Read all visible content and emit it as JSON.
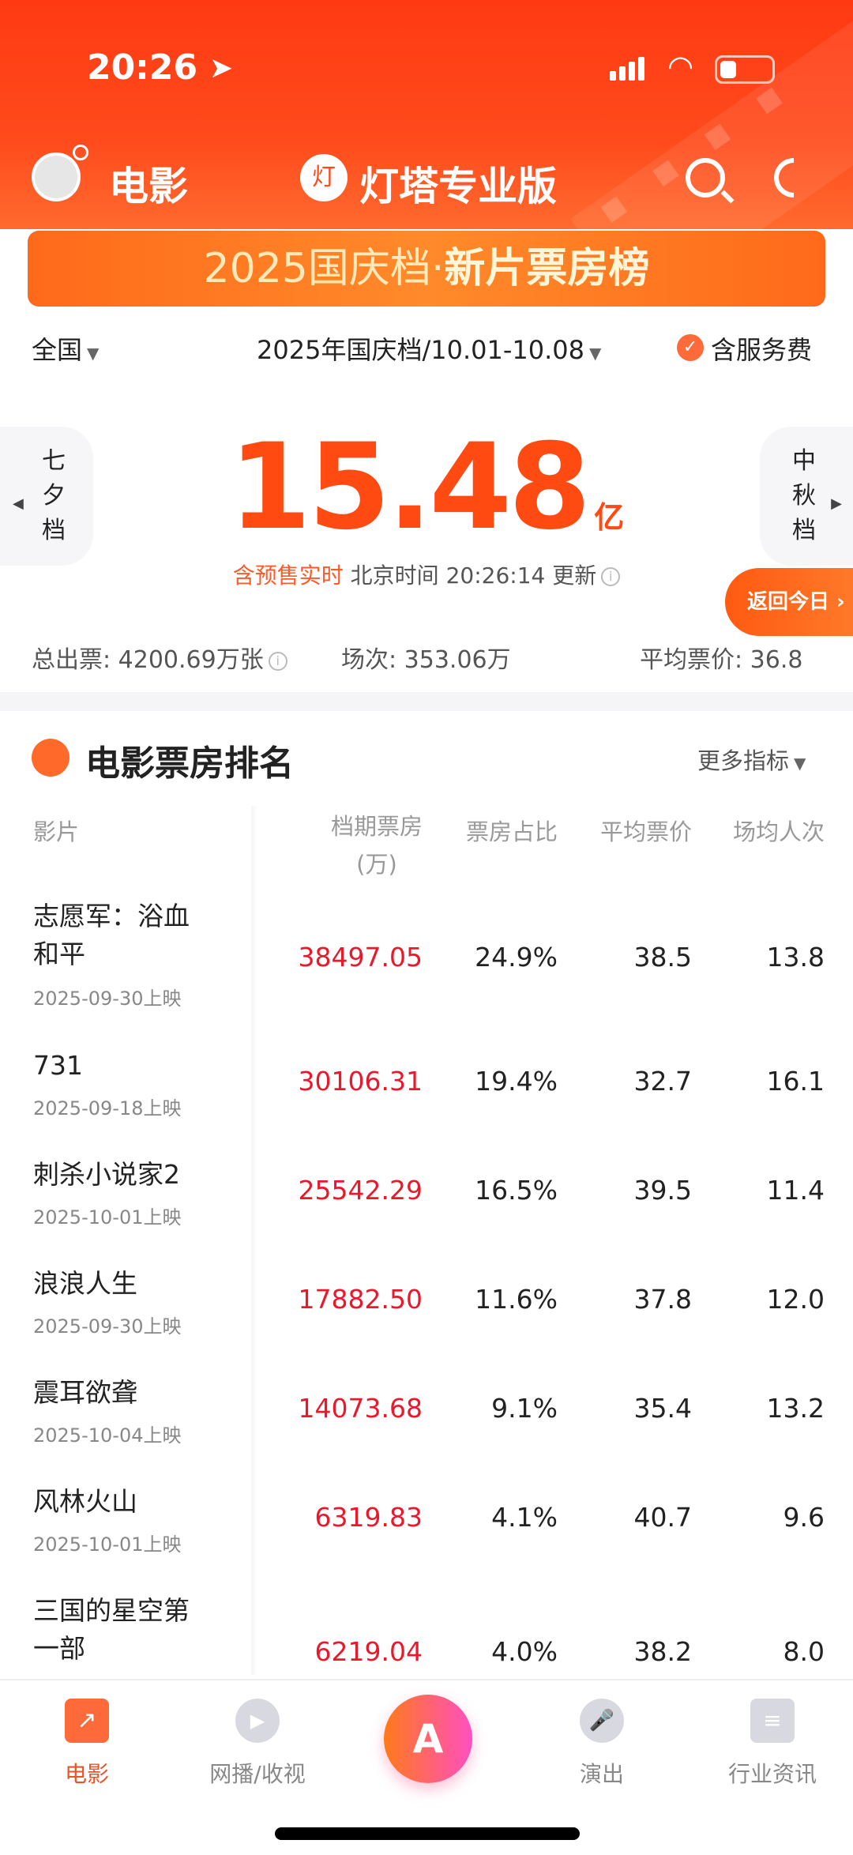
{
  "status_bar": {
    "time": "20:26"
  },
  "header": {
    "title": "电影",
    "app_name": "灯塔专业版",
    "app_logo_glyph": "灯"
  },
  "banner": {
    "prefix": "2025国庆档·",
    "highlight": "新片票房榜"
  },
  "filters": {
    "region": "全国",
    "period": "2025年国庆档/10.01-10.08",
    "service_fee_label": "含服务费",
    "service_fee_checked": true
  },
  "summary": {
    "prev_period": "七夕档",
    "next_period": "中秋档",
    "total_value": "15.48",
    "total_unit": "亿",
    "update_highlight": "含预售实时",
    "update_text": "北京时间 20:26:14 更新",
    "return_today": "返回今日 ›",
    "total_tickets": "总出票: 4200.69万张",
    "shows": "场次: 353.06万",
    "avg_price": "平均票价: 36.8"
  },
  "ranking": {
    "title": "电影票房排名",
    "more_metrics": "更多指标",
    "columns": {
      "film": "影片",
      "box_office": "档期票房",
      "box_office_unit": "(万)",
      "share": "票房占比",
      "avg_price": "平均票价",
      "per_show": "场均人次"
    },
    "rows": [
      {
        "name": "志愿军：浴血和平",
        "date": "2025-09-30上映",
        "box_office": "38497.05",
        "share": "24.9%",
        "avg_price": "38.5",
        "per_show": "13.8"
      },
      {
        "name": "731",
        "date": "2025-09-18上映",
        "box_office": "30106.31",
        "share": "19.4%",
        "avg_price": "32.7",
        "per_show": "16.1"
      },
      {
        "name": "刺杀小说家2",
        "date": "2025-10-01上映",
        "box_office": "25542.29",
        "share": "16.5%",
        "avg_price": "39.5",
        "per_show": "11.4"
      },
      {
        "name": "浪浪人生",
        "date": "2025-09-30上映",
        "box_office": "17882.50",
        "share": "11.6%",
        "avg_price": "37.8",
        "per_show": "12.0"
      },
      {
        "name": "震耳欲聋",
        "date": "2025-10-04上映",
        "box_office": "14073.68",
        "share": "9.1%",
        "avg_price": "35.4",
        "per_show": "13.2"
      },
      {
        "name": "风林火山",
        "date": "2025-10-01上映",
        "box_office": "6319.83",
        "share": "4.1%",
        "avg_price": "40.7",
        "per_show": "9.6"
      },
      {
        "name": "三国的星空第一部",
        "date": "",
        "box_office": "6219.04",
        "share": "4.0%",
        "avg_price": "38.2",
        "per_show": "8.0"
      }
    ]
  },
  "bottom_nav": {
    "tabs": [
      {
        "label": "电影",
        "active": true
      },
      {
        "label": "网播/收视"
      },
      {
        "label": "演出"
      },
      {
        "label": "行业资讯"
      }
    ],
    "center_glyph": "A"
  },
  "colors": {
    "accent": "#ff4a12",
    "box_office_red": "#e8192c"
  }
}
